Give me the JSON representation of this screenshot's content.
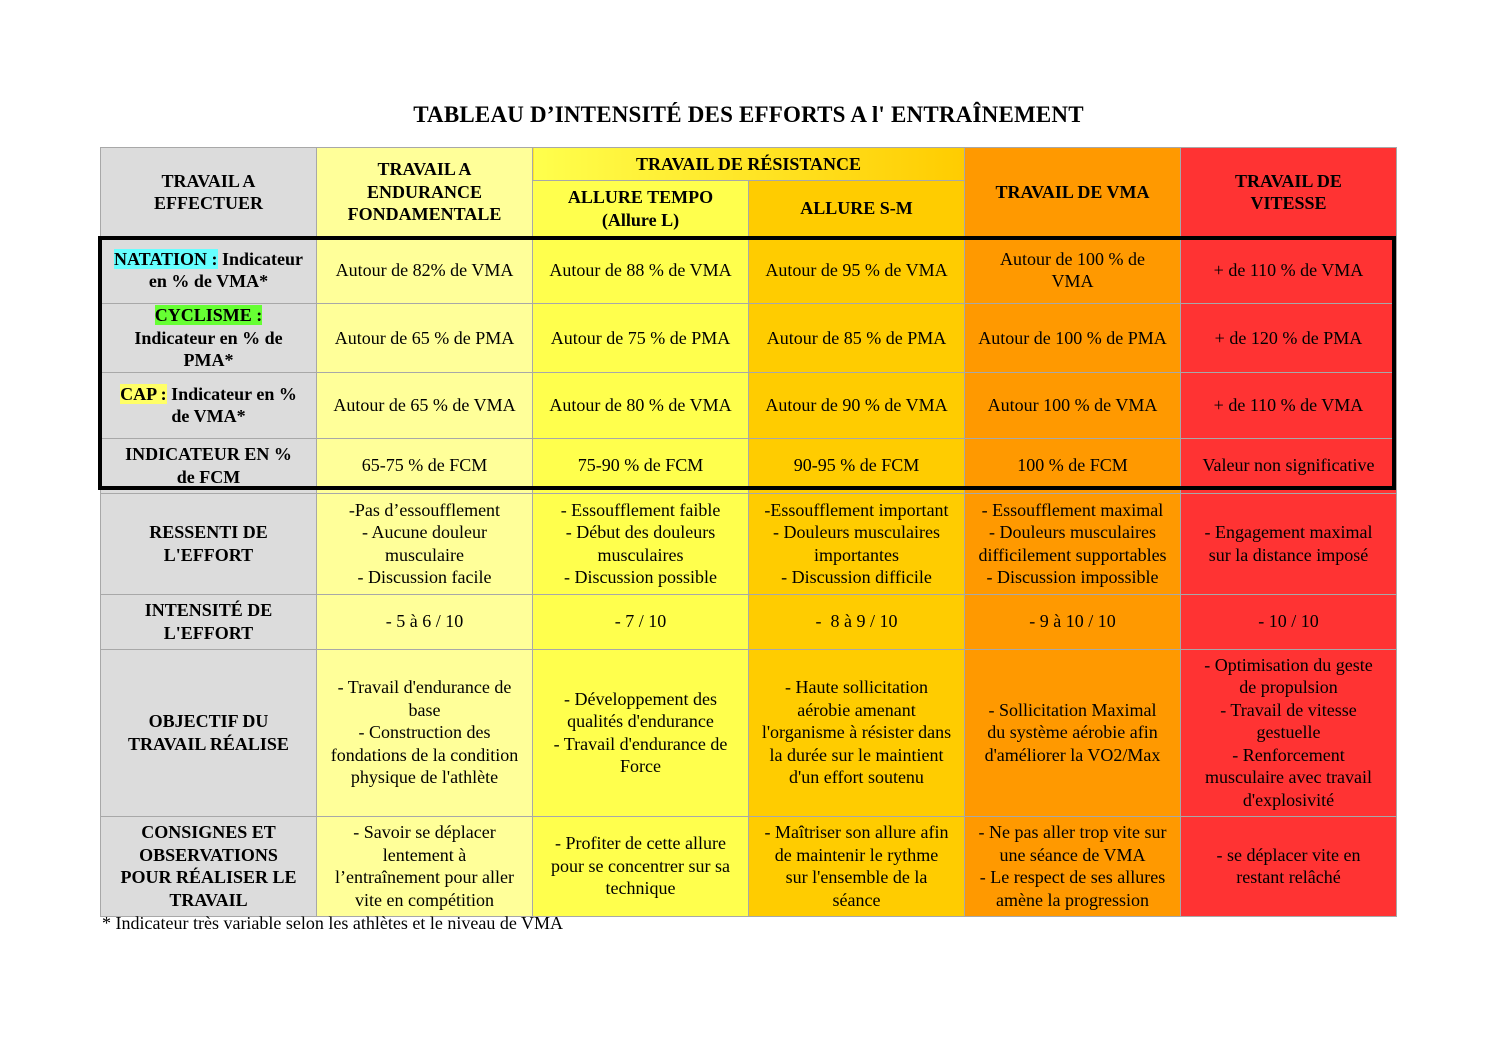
{
  "title": "TABLEAU D’INTENSITÉ DES EFFORTS A l' ENTRAÎNEMENT",
  "header": {
    "work_to_do": "TRAVAIL A\nEFFECTUER",
    "endurance": "TRAVAIL A\nENDURANCE\nFONDAMENTALE",
    "resistance": "TRAVAIL DE RÉSISTANCE",
    "tempo": "ALLURE TEMPO\n(Allure L)",
    "sm": "ALLURE S-M",
    "vma": "TRAVAIL DE VMA",
    "speed": "TRAVAIL DE\nVITESSE"
  },
  "rows": {
    "natation": {
      "label_highlight": "NATATION :",
      "label_rest": " Indicateur en % de VMA*",
      "cells": [
        "Autour de 82% de VMA",
        "Autour de 88 % de VMA",
        "Autour de 95 % de VMA",
        "Autour de 100 % de\nVMA",
        "+ de 110 % de VMA"
      ]
    },
    "cyclisme": {
      "label_highlight": "CYCLISME :",
      "label_rest": "Indicateur en % de\nPMA*",
      "cells": [
        "Autour de 65 % de PMA",
        "Autour de 75 % de PMA",
        "Autour de 85 % de PMA",
        "Autour de 100 % de PMA",
        "+ de 120 % de PMA"
      ]
    },
    "cap": {
      "label_highlight": "CAP :",
      "label_rest": " Indicateur en %\nde VMA*",
      "cells": [
        "Autour de 65 % de VMA",
        "Autour de 80 % de VMA",
        "Autour de 90 % de VMA",
        "Autour 100 % de VMA",
        "+ de 110 % de VMA"
      ]
    },
    "fcm": {
      "label": "INDICATEUR EN %\nde FCM",
      "cells": [
        "65-75 % de FCM",
        "75-90 % de FCM",
        "90-95 % de FCM",
        "100 % de FCM",
        "Valeur non significative"
      ]
    },
    "ressenti": {
      "label": "RESSENTI DE\nL'EFFORT",
      "cells": [
        "-Pas d’essoufflement\n- Aucune douleur\nmusculaire\n- Discussion facile",
        "- Essoufflement faible\n- Début des douleurs\nmusculaires\n- Discussion possible",
        "-Essoufflement important\n- Douleurs musculaires\nimportantes\n- Discussion difficile",
        "- Essoufflement maximal\n- Douleurs musculaires\ndifficilement supportables\n- Discussion impossible",
        "- Engagement maximal\nsur la distance imposé"
      ]
    },
    "intensite": {
      "label": "INTENSITÉ DE\nL'EFFORT",
      "cells": [
        "- 5 à 6 / 10",
        "- 7 / 10",
        "-  8 à 9 / 10",
        "- 9 à 10 / 10",
        "- 10 / 10"
      ]
    },
    "objectif": {
      "label": "OBJECTIF DU\nTRAVAIL RÉALISE",
      "cells": [
        "- Travail d'endurance de\nbase\n- Construction des\nfondations de la condition\nphysique de l'athlète",
        "- Développement des\nqualités d'endurance\n- Travail d'endurance de\nForce",
        "- Haute sollicitation\naérobie amenant\nl'organisme à résister dans\nla durée sur le maintient\nd'un effort soutenu",
        "- Sollicitation Maximal\ndu système aérobie afin\nd'améliorer la VO2/Max",
        "- Optimisation du geste\nde propulsion\n- Travail de vitesse\ngestuelle\n- Renforcement\nmusculaire avec travail\nd'explosivité"
      ]
    },
    "consignes": {
      "label": "CONSIGNES ET\nOBSERVATIONS\nPOUR RÉALISER LE\nTRAVAIL",
      "cells": [
        "- Savoir se déplacer\nlentement à\nl’entraînement pour aller\nvite en compétition",
        "- Profiter de cette allure\npour se concentrer sur sa\ntechnique",
        "- Maîtriser son allure afin\nde maintenir le rythme\nsur l'ensemble de la\nséance",
        "- Ne pas aller trop vite sur\nune séance de VMA\n- Le respect de ses allures\namène la progression",
        "- se déplacer vite en\nrestant relâché"
      ]
    }
  },
  "footnote": "* Indicateur très variable selon les athlètes et le niveau de VMA",
  "colors": {
    "label_col": "#dcdcdc",
    "endurance": "#ffff99",
    "tempo": "#ffff4d",
    "sm": "#ffcc00",
    "vma": "#ff9900",
    "speed": "#ff3333"
  }
}
